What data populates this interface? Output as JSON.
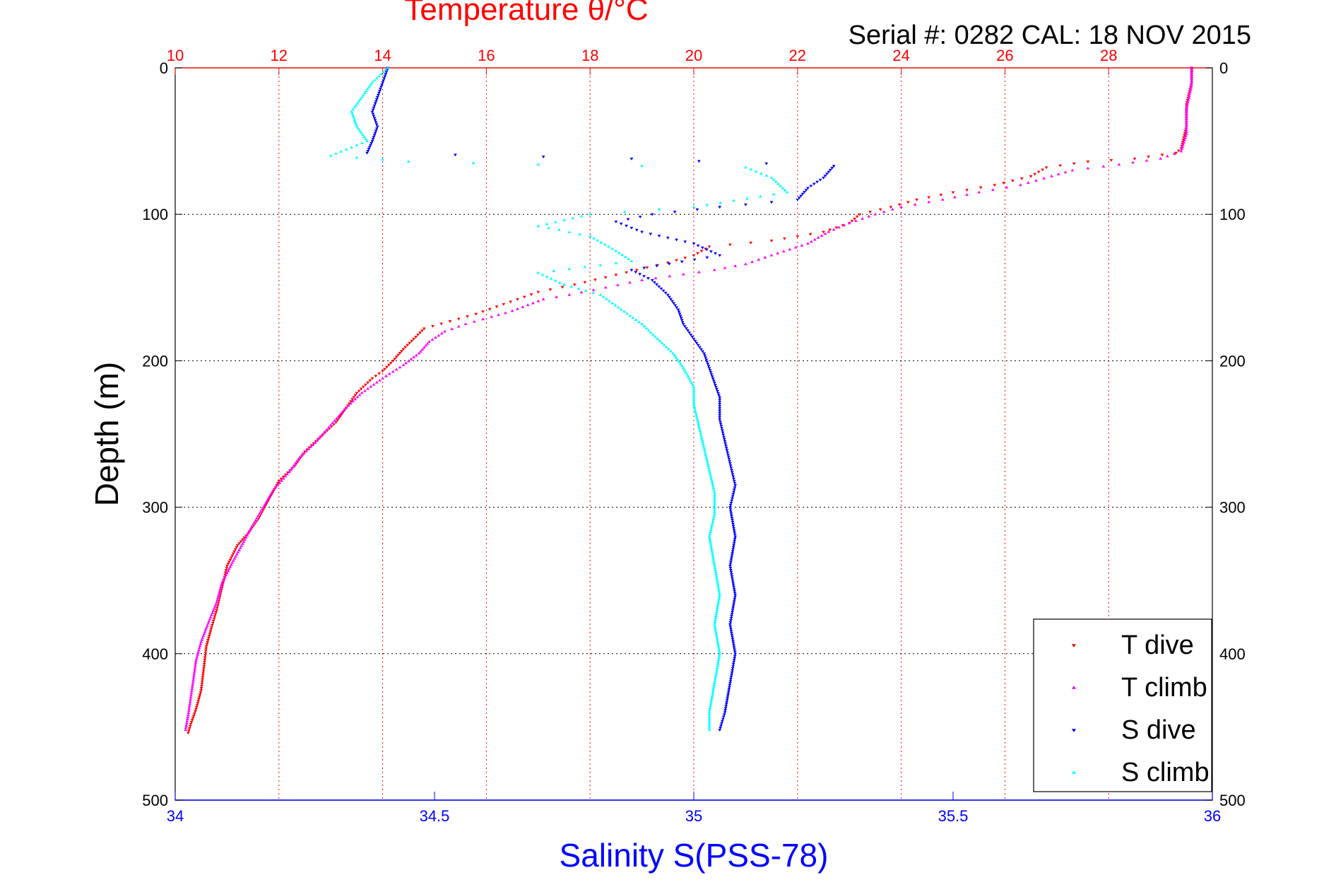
{
  "chart_data": {
    "type": "scatter",
    "top_axis": {
      "label": "Temperature θ/°C",
      "range": [
        10,
        30
      ],
      "ticks": [
        10,
        12,
        14,
        16,
        18,
        20,
        22,
        24,
        26,
        28
      ],
      "tick_labels": [
        "10",
        "12",
        "14",
        "16",
        "18",
        "20",
        "22",
        "24",
        "26",
        "28"
      ],
      "grid": true
    },
    "bottom_axis": {
      "label": "Salinity S(PSS-78)",
      "range": [
        34,
        36
      ],
      "ticks": [
        34,
        34.5,
        35,
        35.5,
        36
      ],
      "tick_labels": [
        "34",
        "34.5",
        "35",
        "35.5",
        "36"
      ]
    },
    "y_axis": {
      "label": "Depth (m)",
      "range": [
        0,
        500
      ],
      "reversed": true,
      "ticks": [
        0,
        100,
        200,
        300,
        400,
        500
      ],
      "tick_labels": [
        "0",
        "100",
        "200",
        "300",
        "400",
        "500"
      ],
      "grid": true
    },
    "annotation": "Serial #: 0282  CAL: 18 NOV 2015",
    "legend": {
      "placement": "bottom-right"
    },
    "series": [
      {
        "name": "T dive",
        "axis": "temperature",
        "color": "#ff0000",
        "marker": "triangle-down",
        "points": [
          [
            29.6,
            0
          ],
          [
            29.6,
            10
          ],
          [
            29.5,
            25
          ],
          [
            29.5,
            40
          ],
          [
            29.4,
            55
          ],
          [
            29.3,
            58
          ],
          [
            28.5,
            62
          ],
          [
            27.6,
            64
          ],
          [
            26.8,
            68
          ],
          [
            26.5,
            74
          ],
          [
            25.8,
            80
          ],
          [
            25.0,
            85
          ],
          [
            24.3,
            90
          ],
          [
            23.8,
            95
          ],
          [
            23.2,
            100
          ],
          [
            23.0,
            106
          ],
          [
            22.5,
            112
          ],
          [
            21.5,
            118
          ],
          [
            20.3,
            122
          ],
          [
            20.0,
            128
          ],
          [
            19.5,
            133
          ],
          [
            18.9,
            138
          ],
          [
            18.3,
            143
          ],
          [
            17.7,
            148
          ],
          [
            17.0,
            153
          ],
          [
            16.6,
            158
          ],
          [
            16.2,
            163
          ],
          [
            15.8,
            168
          ],
          [
            15.3,
            173
          ],
          [
            14.8,
            178
          ],
          [
            14.6,
            185
          ],
          [
            14.4,
            192
          ],
          [
            14.2,
            200
          ],
          [
            14.0,
            207
          ],
          [
            13.8,
            212
          ],
          [
            13.5,
            222
          ],
          [
            13.3,
            232
          ],
          [
            13.1,
            242
          ],
          [
            12.8,
            252
          ],
          [
            12.5,
            262
          ],
          [
            12.3,
            272
          ],
          [
            12.0,
            282
          ],
          [
            11.8,
            295
          ],
          [
            11.6,
            308
          ],
          [
            11.4,
            318
          ],
          [
            11.2,
            326
          ],
          [
            11.0,
            340
          ],
          [
            10.9,
            355
          ],
          [
            10.8,
            370
          ],
          [
            10.7,
            382
          ],
          [
            10.6,
            395
          ],
          [
            10.55,
            410
          ],
          [
            10.5,
            425
          ],
          [
            10.4,
            438
          ],
          [
            10.3,
            448
          ],
          [
            10.25,
            454
          ]
        ]
      },
      {
        "name": "T climb",
        "axis": "temperature",
        "color": "#ff00ff",
        "marker": "triangle-up",
        "points": [
          [
            29.6,
            0
          ],
          [
            29.6,
            12
          ],
          [
            29.5,
            28
          ],
          [
            29.5,
            45
          ],
          [
            29.4,
            57
          ],
          [
            29.0,
            62
          ],
          [
            28.2,
            66
          ],
          [
            27.3,
            70
          ],
          [
            26.9,
            74
          ],
          [
            26.3,
            80
          ],
          [
            25.5,
            85
          ],
          [
            24.8,
            90
          ],
          [
            24.0,
            95
          ],
          [
            23.5,
            100
          ],
          [
            23.0,
            106
          ],
          [
            22.6,
            112
          ],
          [
            22.2,
            120
          ],
          [
            21.5,
            128
          ],
          [
            21.0,
            134
          ],
          [
            20.4,
            138
          ],
          [
            19.8,
            141
          ],
          [
            19.0,
            145
          ],
          [
            18.3,
            150
          ],
          [
            17.6,
            155
          ],
          [
            17.1,
            158
          ],
          [
            16.8,
            162
          ],
          [
            16.5,
            166
          ],
          [
            16.1,
            170
          ],
          [
            15.6,
            175
          ],
          [
            15.2,
            180
          ],
          [
            14.9,
            187
          ],
          [
            14.7,
            195
          ],
          [
            14.4,
            203
          ],
          [
            14.0,
            212
          ],
          [
            13.6,
            222
          ],
          [
            13.3,
            232
          ],
          [
            13.0,
            244
          ],
          [
            12.7,
            256
          ],
          [
            12.4,
            266
          ],
          [
            12.2,
            276
          ],
          [
            11.9,
            288
          ],
          [
            11.7,
            300
          ],
          [
            11.5,
            312
          ],
          [
            11.3,
            325
          ],
          [
            11.1,
            338
          ],
          [
            10.9,
            352
          ],
          [
            10.8,
            365
          ],
          [
            10.65,
            378
          ],
          [
            10.5,
            392
          ],
          [
            10.4,
            405
          ],
          [
            10.35,
            418
          ],
          [
            10.3,
            430
          ],
          [
            10.25,
            442
          ],
          [
            10.2,
            452
          ]
        ]
      },
      {
        "name": "S dive",
        "axis": "salinity",
        "color": "#0000ff",
        "marker": "triangle-down",
        "points": [
          [
            34.41,
            0
          ],
          [
            34.4,
            10
          ],
          [
            34.39,
            20
          ],
          [
            34.38,
            30
          ],
          [
            34.39,
            40
          ],
          [
            34.38,
            50
          ],
          [
            34.37,
            58
          ],
          [
            34.88,
            62
          ],
          [
            35.27,
            67
          ],
          [
            35.25,
            75
          ],
          [
            35.22,
            82
          ],
          [
            35.2,
            90
          ],
          [
            35.05,
            95
          ],
          [
            34.92,
            100
          ],
          [
            34.85,
            105
          ],
          [
            34.9,
            112
          ],
          [
            35.0,
            120
          ],
          [
            35.05,
            128
          ],
          [
            34.88,
            138
          ],
          [
            34.92,
            145
          ],
          [
            34.95,
            155
          ],
          [
            34.97,
            165
          ],
          [
            34.98,
            175
          ],
          [
            35.0,
            185
          ],
          [
            35.02,
            195
          ],
          [
            35.03,
            205
          ],
          [
            35.04,
            215
          ],
          [
            35.05,
            225
          ],
          [
            35.05,
            240
          ],
          [
            35.06,
            255
          ],
          [
            35.07,
            270
          ],
          [
            35.08,
            285
          ],
          [
            35.07,
            300
          ],
          [
            35.08,
            320
          ],
          [
            35.07,
            340
          ],
          [
            35.08,
            360
          ],
          [
            35.07,
            380
          ],
          [
            35.08,
            400
          ],
          [
            35.07,
            420
          ],
          [
            35.06,
            440
          ],
          [
            35.05,
            452
          ]
        ]
      },
      {
        "name": "S climb",
        "axis": "salinity",
        "color": "#00ffff",
        "marker": "triangle-up",
        "points": [
          [
            34.41,
            0
          ],
          [
            34.38,
            10
          ],
          [
            34.36,
            20
          ],
          [
            34.34,
            30
          ],
          [
            34.35,
            40
          ],
          [
            34.37,
            50
          ],
          [
            34.3,
            60
          ],
          [
            34.45,
            64
          ],
          [
            34.7,
            66
          ],
          [
            35.1,
            68
          ],
          [
            35.15,
            75
          ],
          [
            35.18,
            85
          ],
          [
            35.0,
            95
          ],
          [
            34.8,
            100
          ],
          [
            34.7,
            108
          ],
          [
            34.8,
            115
          ],
          [
            34.85,
            125
          ],
          [
            34.88,
            132
          ],
          [
            34.7,
            140
          ],
          [
            34.75,
            148
          ],
          [
            34.82,
            155
          ],
          [
            34.86,
            165
          ],
          [
            34.9,
            175
          ],
          [
            34.93,
            185
          ],
          [
            34.96,
            195
          ],
          [
            34.98,
            205
          ],
          [
            35.0,
            218
          ],
          [
            35.0,
            230
          ],
          [
            35.01,
            245
          ],
          [
            35.02,
            260
          ],
          [
            35.03,
            275
          ],
          [
            35.04,
            290
          ],
          [
            35.04,
            305
          ],
          [
            35.03,
            320
          ],
          [
            35.04,
            340
          ],
          [
            35.05,
            360
          ],
          [
            35.04,
            380
          ],
          [
            35.05,
            400
          ],
          [
            35.04,
            420
          ],
          [
            35.03,
            440
          ],
          [
            35.03,
            452
          ]
        ]
      }
    ]
  }
}
